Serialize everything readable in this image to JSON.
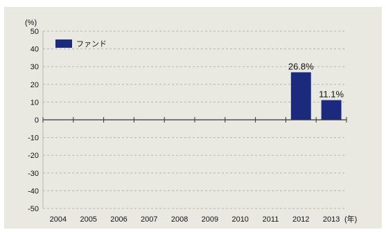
{
  "chart_data": {
    "type": "bar",
    "categories": [
      "2004",
      "2005",
      "2006",
      "2007",
      "2008",
      "2009",
      "2010",
      "2011",
      "2012",
      "2013"
    ],
    "series": [
      {
        "name": "ファンド",
        "values": [
          null,
          null,
          null,
          null,
          null,
          null,
          null,
          null,
          26.8,
          11.1
        ]
      }
    ],
    "data_labels": [
      "",
      "",
      "",
      "",
      "",
      "",
      "",
      "",
      "26.8%",
      "11.1%"
    ],
    "y_unit_label": "(%)",
    "x_unit_label": "(年)",
    "ylim": [
      -50,
      50
    ],
    "y_ticks": [
      50,
      40,
      30,
      20,
      10,
      0,
      -10,
      -20,
      -30,
      -40,
      -50
    ],
    "grid": "horizontal-dashed",
    "legend_position": "top-left",
    "colors": {
      "background": "#e9e8e1",
      "bar": "#1c2a7e",
      "grid": "#b7b6ae",
      "axis": "#333333"
    }
  }
}
